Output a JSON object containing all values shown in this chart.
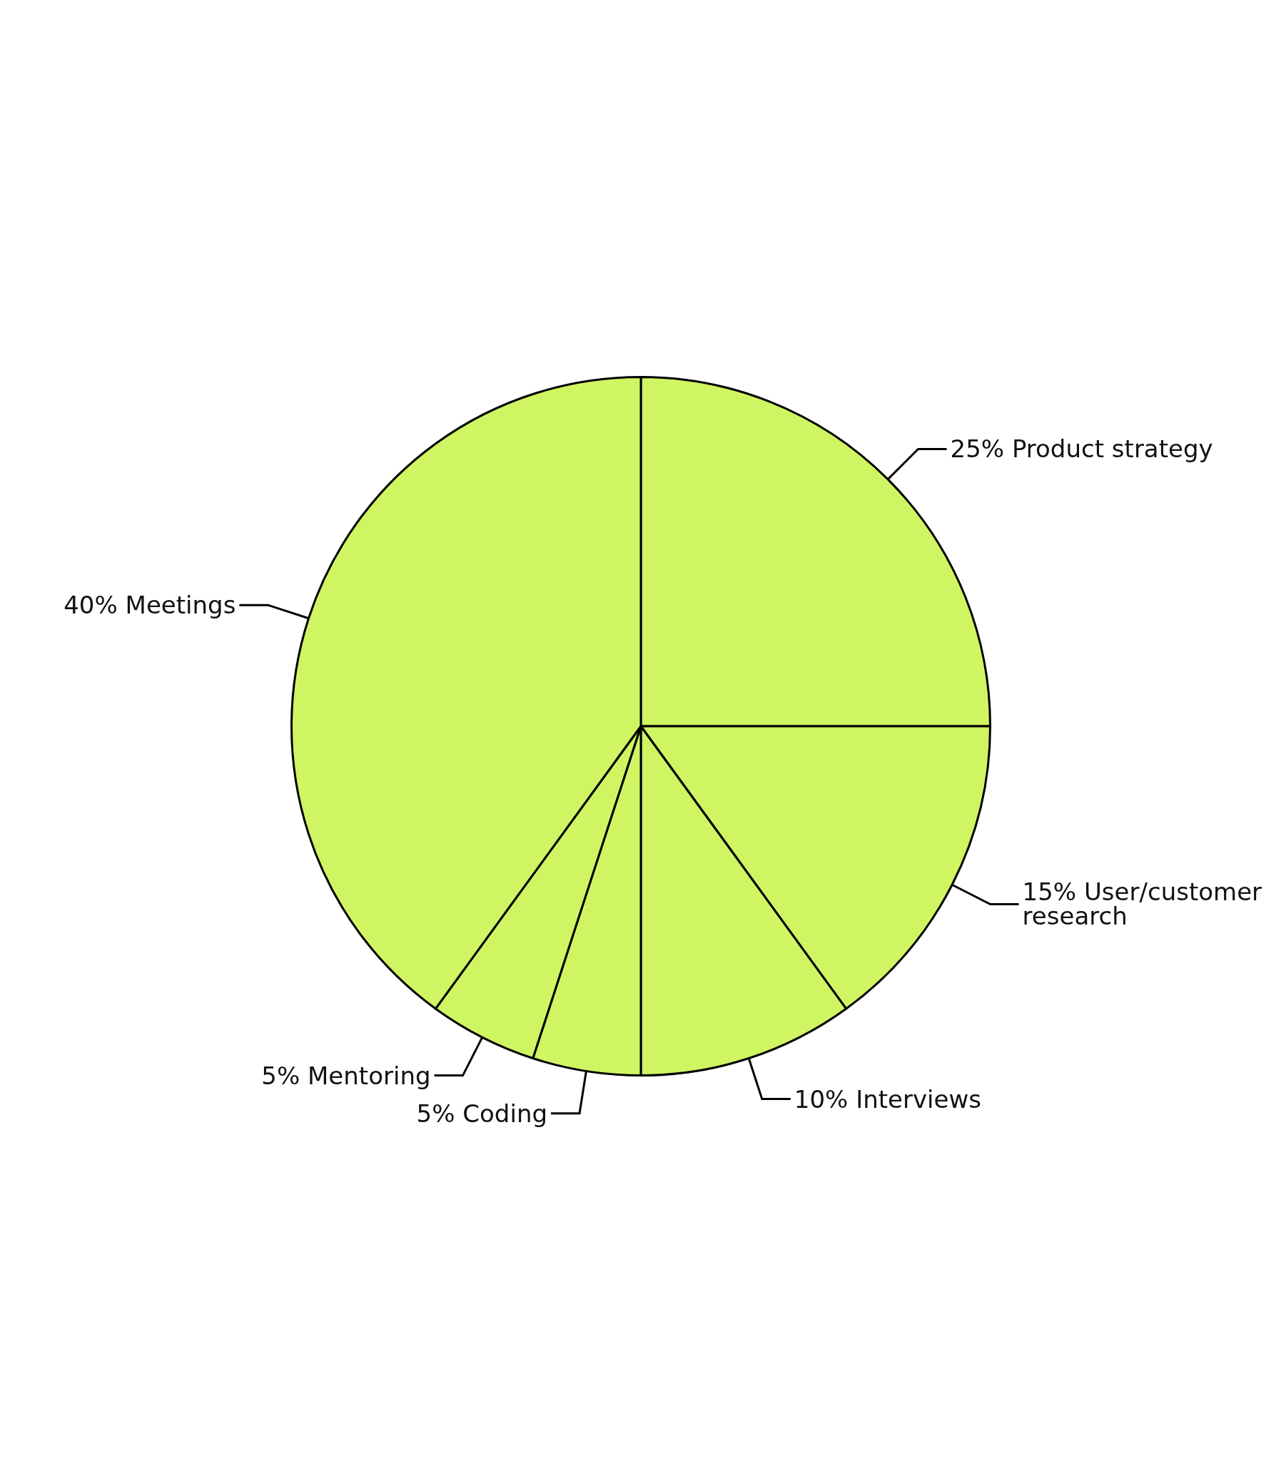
{
  "chart_data": {
    "type": "pie",
    "categories": [
      "Product strategy",
      "User/customer research",
      "Interviews",
      "Coding",
      "Mentoring",
      "Meetings"
    ],
    "values": [
      25,
      15,
      10,
      5,
      5,
      40
    ],
    "value_labels": [
      "25%",
      "15%",
      "10%",
      "5%",
      "5%",
      "40%"
    ],
    "colors": [
      "#d0f562",
      "#d0f562",
      "#d0f562",
      "#d0f562",
      "#d0f562",
      "#d0f562"
    ],
    "legend": false
  }
}
